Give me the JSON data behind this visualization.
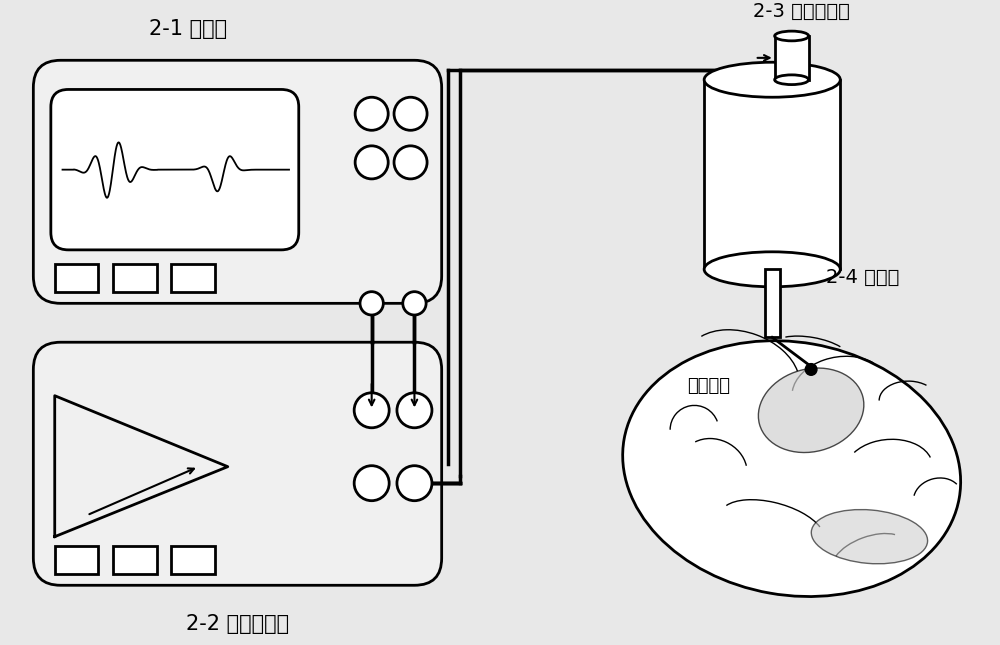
{
  "bg_color": "#e8e8e8",
  "title_21": "2-1 信号源",
  "title_22": "2-2 功率放大器",
  "title_23": "2-3 超声换能器",
  "title_24": "2-4 准直器",
  "label_motor": "运动皮层",
  "line_color": "#000000",
  "box_fill": "#ffffff",
  "font_size_title": 16,
  "font_size_label": 14
}
